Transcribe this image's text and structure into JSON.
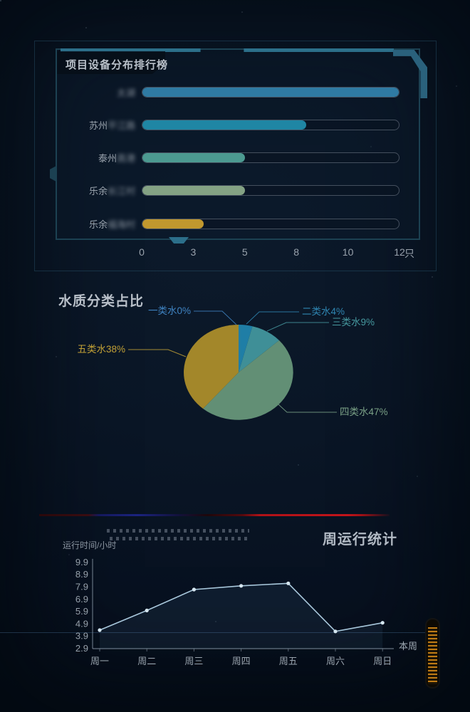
{
  "accent_colors": {
    "frame_teal": "#2c6f8a",
    "divider_blue": "#1b2380",
    "divider_red": "#c2141a",
    "scrollbar_orange": "#c98216",
    "axis_text": "#99a2ac"
  },
  "chart_data": [
    {
      "type": "bar",
      "orientation": "horizontal",
      "title": "项目设备分布排行榜",
      "categories": [
        "太湖",
        "苏州平江路",
        "泰州高港",
        "乐余长江村",
        "乐余福海村"
      ],
      "values": [
        12.5,
        8,
        5,
        5,
        3
      ],
      "unit": "只",
      "x_ticks": [
        "0",
        "3",
        "5",
        "8",
        "10",
        "12"
      ],
      "xlim": [
        0,
        12.5
      ],
      "bar_colors": [
        "#2f7aa3",
        "#1f86a4",
        "#4c9a91",
        "#84a284",
        "#c1982e"
      ],
      "censor_blur_last_chars": [
        2,
        3,
        2,
        3,
        3
      ],
      "grid": false
    },
    {
      "type": "pie",
      "title": "水质分类占比",
      "labels": [
        "一类水",
        "二类水",
        "三类水",
        "四类水",
        "五类水"
      ],
      "values": [
        0,
        4,
        9,
        47,
        38
      ],
      "unit": "%",
      "colors": [
        "#3f83c2",
        "#1f7ea6",
        "#3f8f97",
        "#628f75",
        "#a3872a"
      ],
      "label_colors": [
        "#3f83c2",
        "#2f86b2",
        "#46989f",
        "#7aa186",
        "#c2a136"
      ],
      "legend_position": "none"
    },
    {
      "type": "line",
      "title": "周运行统计",
      "ylabel": "运行时间/小时",
      "legend": [
        "本周"
      ],
      "x": [
        "周一",
        "周二",
        "周三",
        "周四",
        "周五",
        "周六",
        "周日"
      ],
      "series": [
        {
          "name": "本周",
          "values": [
            4.4,
            6.0,
            7.7,
            8.0,
            8.2,
            4.3,
            5.0
          ]
        }
      ],
      "y_ticks": [
        9.9,
        8.9,
        7.9,
        6.9,
        5.9,
        4.9,
        3.9,
        2.9
      ],
      "ylim": [
        2.9,
        9.9
      ],
      "line_color": "#a9c8dc",
      "point_color": "#d5e6f0",
      "grid": false,
      "legend_position": "right-bottom"
    }
  ]
}
